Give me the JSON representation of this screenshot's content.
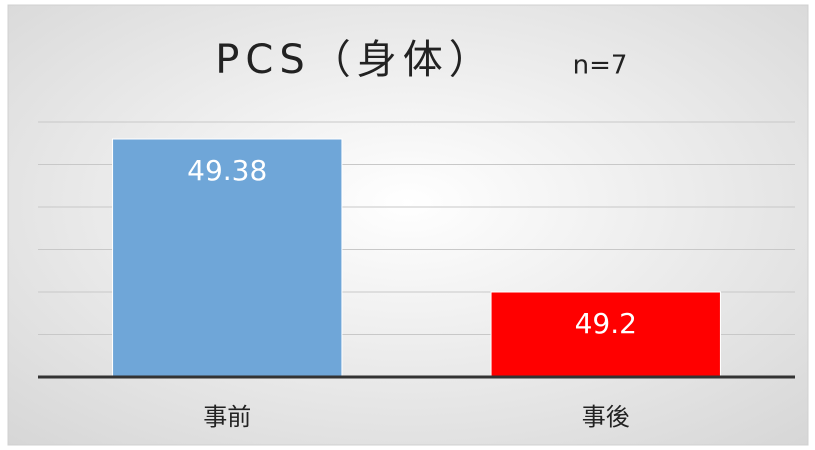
{
  "chart_data": {
    "type": "bar",
    "title": "PCS（身体）",
    "subtitle": "n=7",
    "categories": [
      "事前",
      "事後"
    ],
    "values": [
      49.38,
      49.2
    ],
    "colors": [
      "#6fa6d8",
      "#ff0000"
    ],
    "ylim": [
      49.1,
      49.4
    ],
    "yticks": [
      49.1,
      49.15,
      49.2,
      49.25,
      49.3,
      49.35,
      49.4
    ],
    "grid": true
  }
}
